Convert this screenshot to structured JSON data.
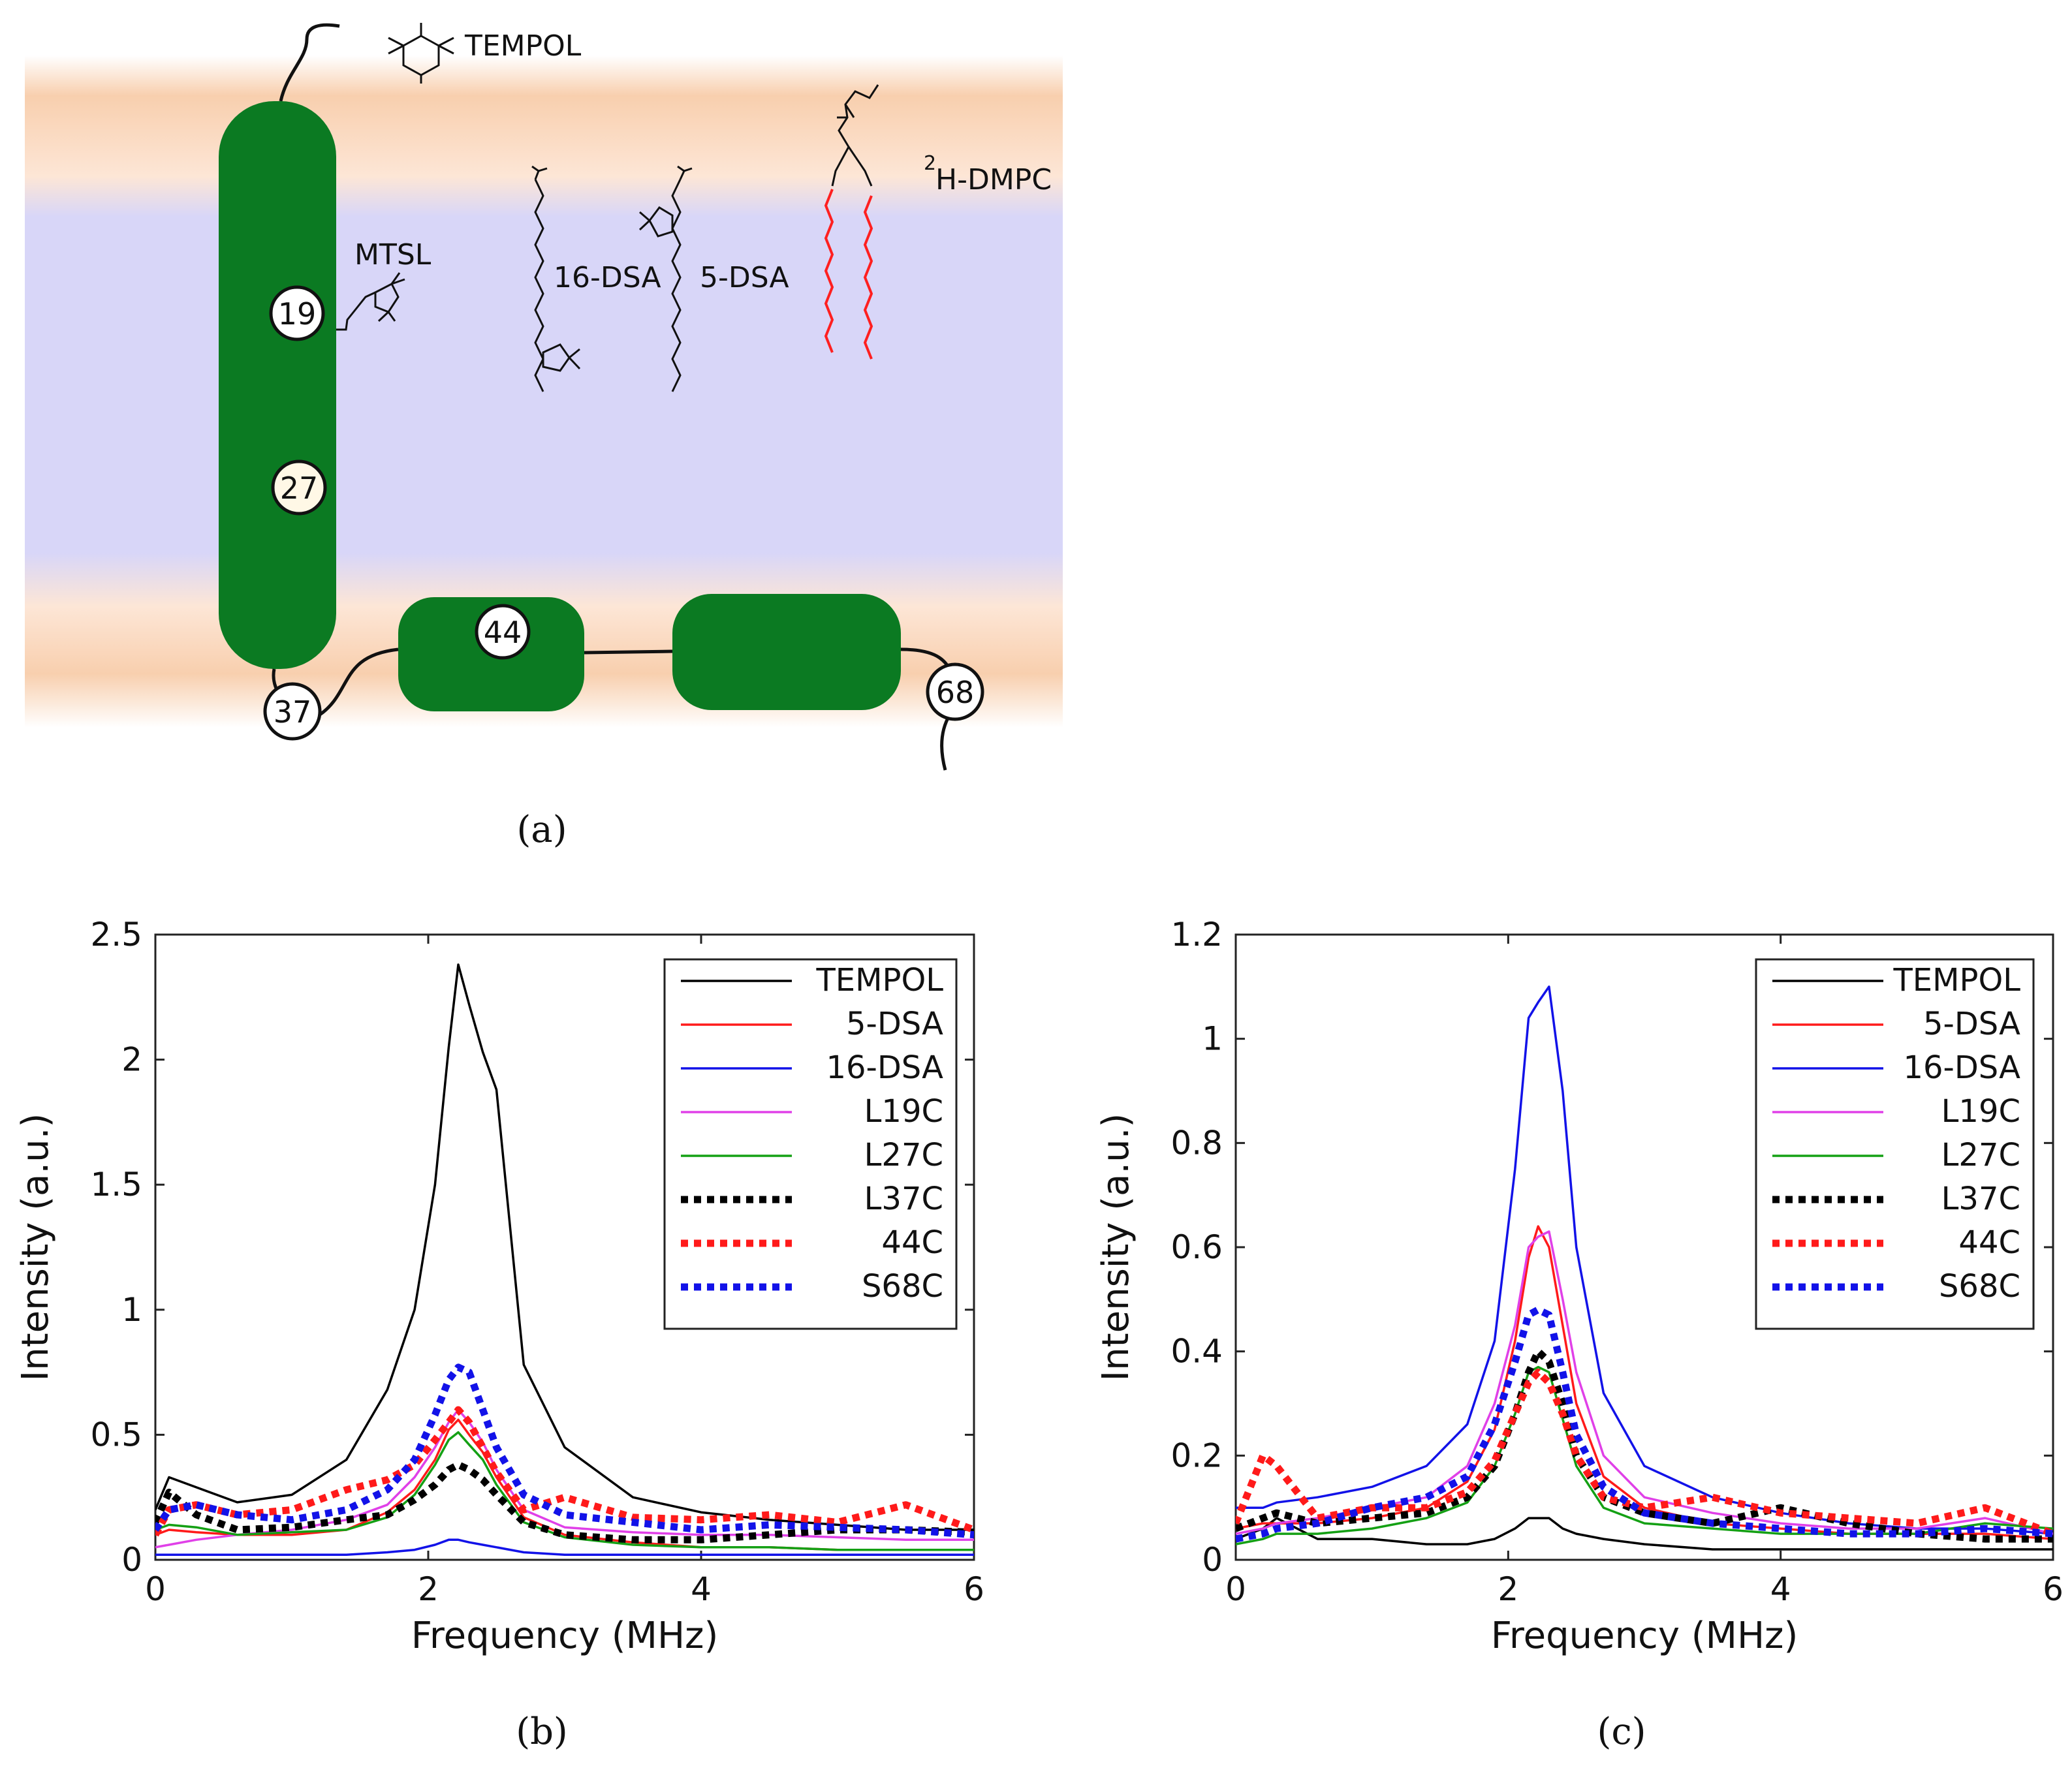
{
  "figure": {
    "labels": {
      "a": "(a)",
      "b": "(b)",
      "c": "(c)"
    }
  },
  "schematic": {
    "tempol_label": "TEMPOL",
    "mtsl_label": "MTSL",
    "dsa16_label": "16-DSA",
    "dsa5_label": "5-DSA",
    "dmpc_label": "H-DMPC",
    "dmpc_superscript": "2",
    "residues": [
      "19",
      "27",
      "44",
      "37",
      "68"
    ],
    "colors": {
      "helix": "#0b7a22",
      "headgroup": "#f7c9a8",
      "core": "#d6d5f7",
      "lipid_chain": "#ff2020"
    }
  },
  "chart_data": [
    {
      "id": "b",
      "type": "line",
      "xlabel": "Frequency (MHz)",
      "ylabel": "Intensity (a.u.)",
      "xlim": [
        0,
        6
      ],
      "ylim": [
        0,
        2.5
      ],
      "xticks": [
        0,
        2,
        4,
        6
      ],
      "xtick_labels": [
        "0",
        "2",
        "4",
        "6"
      ],
      "yticks": [
        0,
        0.5,
        1,
        1.5,
        2,
        2.5
      ],
      "ytick_labels": [
        "0",
        "0.5",
        "1",
        "1.5",
        "2",
        "2.5"
      ],
      "legend": "top-right",
      "x": [
        0,
        0.1,
        0.3,
        0.6,
        1.0,
        1.4,
        1.7,
        1.9,
        2.05,
        2.15,
        2.22,
        2.3,
        2.4,
        2.5,
        2.7,
        3.0,
        3.5,
        4.0,
        4.5,
        5.0,
        5.5,
        6.0
      ],
      "series": [
        {
          "name": "TEMPOL",
          "color": "#000000",
          "style": "solid",
          "values": [
            0.2,
            0.33,
            0.29,
            0.23,
            0.26,
            0.4,
            0.68,
            1.0,
            1.5,
            2.05,
            2.38,
            2.22,
            2.03,
            1.88,
            0.78,
            0.45,
            0.25,
            0.19,
            0.16,
            0.14,
            0.12,
            0.12
          ]
        },
        {
          "name": "5-DSA",
          "color": "#ff1a1a",
          "style": "solid",
          "values": [
            0.1,
            0.12,
            0.11,
            0.1,
            0.1,
            0.12,
            0.19,
            0.28,
            0.4,
            0.52,
            0.56,
            0.5,
            0.43,
            0.33,
            0.17,
            0.1,
            0.07,
            0.05,
            0.05,
            0.04,
            0.04,
            0.04
          ]
        },
        {
          "name": "16-DSA",
          "color": "#1212e8",
          "style": "solid",
          "values": [
            0.02,
            0.02,
            0.02,
            0.02,
            0.02,
            0.02,
            0.03,
            0.04,
            0.06,
            0.08,
            0.08,
            0.07,
            0.06,
            0.05,
            0.03,
            0.02,
            0.02,
            0.02,
            0.02,
            0.02,
            0.02,
            0.02
          ]
        },
        {
          "name": "L19C",
          "color": "#e040e8",
          "style": "solid",
          "values": [
            0.05,
            0.06,
            0.08,
            0.1,
            0.12,
            0.16,
            0.22,
            0.33,
            0.45,
            0.55,
            0.6,
            0.55,
            0.47,
            0.36,
            0.2,
            0.13,
            0.11,
            0.1,
            0.1,
            0.09,
            0.08,
            0.08
          ]
        },
        {
          "name": "L27C",
          "color": "#14a014",
          "style": "solid",
          "values": [
            0.12,
            0.14,
            0.13,
            0.1,
            0.11,
            0.12,
            0.17,
            0.26,
            0.38,
            0.48,
            0.51,
            0.46,
            0.4,
            0.3,
            0.15,
            0.09,
            0.06,
            0.05,
            0.05,
            0.04,
            0.04,
            0.04
          ]
        },
        {
          "name": "L37C",
          "color": "#000000",
          "style": "dotted",
          "values": [
            0.15,
            0.27,
            0.18,
            0.12,
            0.13,
            0.16,
            0.18,
            0.24,
            0.3,
            0.36,
            0.38,
            0.36,
            0.32,
            0.26,
            0.15,
            0.1,
            0.08,
            0.08,
            0.1,
            0.12,
            0.12,
            0.11
          ]
        },
        {
          "name": "44C",
          "color": "#ff1a1a",
          "style": "dotted",
          "values": [
            0.1,
            0.2,
            0.22,
            0.18,
            0.2,
            0.28,
            0.32,
            0.38,
            0.48,
            0.55,
            0.6,
            0.55,
            0.45,
            0.35,
            0.2,
            0.25,
            0.17,
            0.16,
            0.18,
            0.15,
            0.22,
            0.12
          ]
        },
        {
          "name": "S68C",
          "color": "#1212e8",
          "style": "dotted",
          "values": [
            0.12,
            0.2,
            0.22,
            0.18,
            0.16,
            0.2,
            0.28,
            0.4,
            0.58,
            0.72,
            0.77,
            0.75,
            0.6,
            0.45,
            0.26,
            0.18,
            0.15,
            0.12,
            0.14,
            0.13,
            0.12,
            0.1
          ]
        }
      ]
    },
    {
      "id": "c",
      "type": "line",
      "xlabel": "Frequency (MHz)",
      "ylabel": "Intensity (a.u.)",
      "xlim": [
        0,
        6
      ],
      "ylim": [
        0,
        1.2
      ],
      "xticks": [
        0,
        2,
        4,
        6
      ],
      "xtick_labels": [
        "0",
        "2",
        "4",
        "6"
      ],
      "yticks": [
        0,
        0.2,
        0.4,
        0.6,
        0.8,
        1,
        1.2
      ],
      "ytick_labels": [
        "0",
        "0.2",
        "0.4",
        "0.6",
        "0.8",
        "1",
        "1.2"
      ],
      "legend": "top-right",
      "x": [
        0,
        0.2,
        0.3,
        0.6,
        1.0,
        1.4,
        1.7,
        1.9,
        2.05,
        2.15,
        2.22,
        2.3,
        2.4,
        2.5,
        2.7,
        3.0,
        3.5,
        4.0,
        4.5,
        5.0,
        5.5,
        6.0
      ],
      "series": [
        {
          "name": "TEMPOL",
          "color": "#000000",
          "style": "solid",
          "values": [
            0.04,
            0.06,
            0.08,
            0.04,
            0.04,
            0.03,
            0.03,
            0.04,
            0.06,
            0.08,
            0.08,
            0.08,
            0.06,
            0.05,
            0.04,
            0.03,
            0.02,
            0.02,
            0.02,
            0.02,
            0.02,
            0.02
          ]
        },
        {
          "name": "5-DSA",
          "color": "#ff1a1a",
          "style": "solid",
          "values": [
            0.06,
            0.07,
            0.07,
            0.07,
            0.08,
            0.1,
            0.15,
            0.25,
            0.42,
            0.58,
            0.64,
            0.6,
            0.45,
            0.3,
            0.16,
            0.1,
            0.07,
            0.06,
            0.05,
            0.05,
            0.05,
            0.04
          ]
        },
        {
          "name": "16-DSA",
          "color": "#1212e8",
          "style": "solid",
          "values": [
            0.1,
            0.1,
            0.11,
            0.12,
            0.14,
            0.18,
            0.26,
            0.42,
            0.75,
            1.04,
            1.07,
            1.1,
            0.9,
            0.6,
            0.32,
            0.18,
            0.12,
            0.09,
            0.07,
            0.06,
            0.06,
            0.05
          ]
        },
        {
          "name": "L19C",
          "color": "#e040e8",
          "style": "solid",
          "values": [
            0.05,
            0.06,
            0.07,
            0.08,
            0.1,
            0.12,
            0.18,
            0.3,
            0.45,
            0.6,
            0.62,
            0.63,
            0.5,
            0.36,
            0.2,
            0.12,
            0.09,
            0.07,
            0.06,
            0.06,
            0.08,
            0.05
          ]
        },
        {
          "name": "L27C",
          "color": "#14a014",
          "style": "solid",
          "values": [
            0.03,
            0.04,
            0.05,
            0.05,
            0.06,
            0.08,
            0.11,
            0.18,
            0.28,
            0.36,
            0.37,
            0.36,
            0.27,
            0.18,
            0.1,
            0.07,
            0.06,
            0.05,
            0.05,
            0.05,
            0.07,
            0.06
          ]
        },
        {
          "name": "L37C",
          "color": "#000000",
          "style": "dotted",
          "values": [
            0.06,
            0.08,
            0.09,
            0.07,
            0.08,
            0.09,
            0.12,
            0.18,
            0.28,
            0.36,
            0.4,
            0.38,
            0.3,
            0.2,
            0.12,
            0.09,
            0.07,
            0.1,
            0.07,
            0.05,
            0.04,
            0.04
          ]
        },
        {
          "name": "44C",
          "color": "#ff1a1a",
          "style": "dotted",
          "values": [
            0.07,
            0.2,
            0.18,
            0.08,
            0.1,
            0.1,
            0.13,
            0.19,
            0.28,
            0.34,
            0.36,
            0.34,
            0.28,
            0.2,
            0.12,
            0.1,
            0.12,
            0.09,
            0.08,
            0.07,
            0.1,
            0.05
          ]
        },
        {
          "name": "S68C",
          "color": "#1212e8",
          "style": "dotted",
          "values": [
            0.04,
            0.05,
            0.06,
            0.07,
            0.1,
            0.12,
            0.16,
            0.26,
            0.38,
            0.47,
            0.48,
            0.47,
            0.36,
            0.24,
            0.14,
            0.09,
            0.07,
            0.06,
            0.05,
            0.05,
            0.06,
            0.05
          ]
        }
      ]
    }
  ]
}
